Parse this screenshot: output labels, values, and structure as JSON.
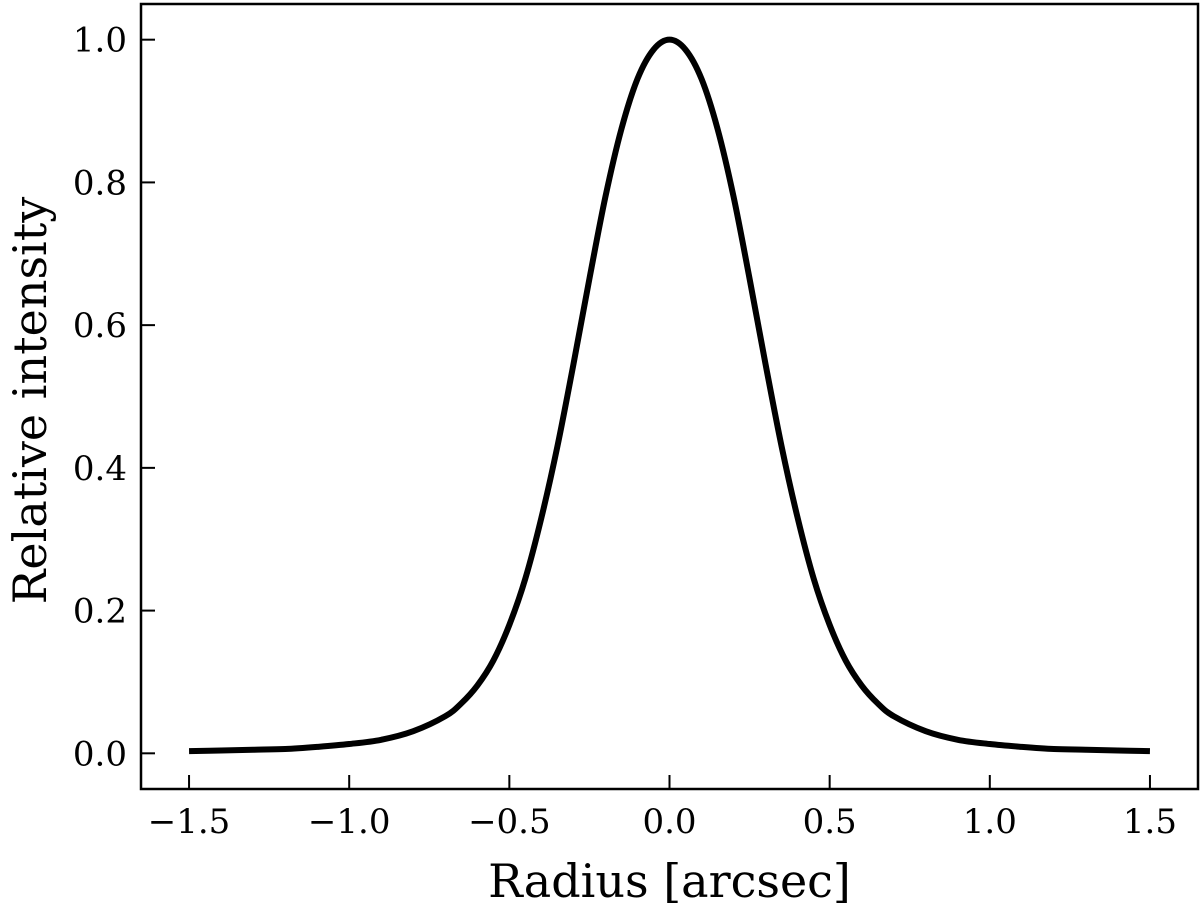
{
  "chart_data": {
    "type": "line",
    "title": "",
    "xlabel": "Radius [arcsec]",
    "ylabel": "Relative intensity",
    "xlim": [
      -1.65,
      1.65
    ],
    "ylim": [
      -0.05,
      1.05
    ],
    "grid": false,
    "legend": "none",
    "x_ticks": [
      {
        "value": -1.5,
        "label": "−1.5"
      },
      {
        "value": -1.0,
        "label": "−1.0"
      },
      {
        "value": -0.5,
        "label": "−0.5"
      },
      {
        "value": 0.0,
        "label": "0.0"
      },
      {
        "value": 0.5,
        "label": "0.5"
      },
      {
        "value": 1.0,
        "label": "1.0"
      },
      {
        "value": 1.5,
        "label": "1.5"
      }
    ],
    "y_ticks": [
      {
        "value": 0.0,
        "label": "0.0"
      },
      {
        "value": 0.2,
        "label": "0.2"
      },
      {
        "value": 0.4,
        "label": "0.4"
      },
      {
        "value": 0.6,
        "label": "0.6"
      },
      {
        "value": 0.8,
        "label": "0.8"
      },
      {
        "value": 1.0,
        "label": "1.0"
      }
    ],
    "series": [
      {
        "color": "#000000",
        "x": [
          -1.5,
          -1.4,
          -1.3,
          -1.2,
          -1.1,
          -1.0,
          -0.9,
          -0.8,
          -0.7,
          -0.65,
          -0.6,
          -0.55,
          -0.5,
          -0.45,
          -0.4,
          -0.35,
          -0.3,
          -0.25,
          -0.2,
          -0.15,
          -0.1,
          -0.05,
          0.0,
          0.05,
          0.1,
          0.15,
          0.2,
          0.25,
          0.3,
          0.35,
          0.4,
          0.45,
          0.5,
          0.55,
          0.6,
          0.65,
          0.7,
          0.8,
          0.9,
          1.0,
          1.1,
          1.2,
          1.3,
          1.4,
          1.5
        ],
        "y": [
          0.003,
          0.004,
          0.005,
          0.006,
          0.009,
          0.013,
          0.019,
          0.031,
          0.052,
          0.07,
          0.095,
          0.13,
          0.18,
          0.245,
          0.33,
          0.43,
          0.545,
          0.665,
          0.78,
          0.875,
          0.945,
          0.986,
          1.0,
          0.986,
          0.945,
          0.875,
          0.78,
          0.665,
          0.545,
          0.43,
          0.33,
          0.245,
          0.18,
          0.13,
          0.095,
          0.07,
          0.052,
          0.031,
          0.019,
          0.013,
          0.009,
          0.006,
          0.005,
          0.004,
          0.003
        ]
      }
    ]
  }
}
